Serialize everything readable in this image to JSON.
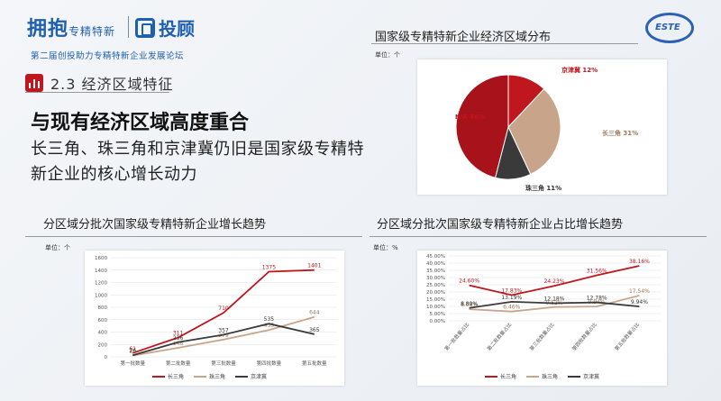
{
  "logo": {
    "script_text": "拥抱",
    "script_small": "专精特新",
    "brand_text": "投顾",
    "forum_subtitle": "第二届创投助力专精特新企业发展论坛",
    "ring_text": "ESTE"
  },
  "section": {
    "title": "2.3 经济区域特征"
  },
  "headline": "与现有经济区域高度重合",
  "body": "长三角、珠三角和京津冀仍旧是国家级专精特新企业的核心增长动力",
  "colors": {
    "red": "#c0161d",
    "tan": "#c8a58a",
    "dark": "#3a3a3a",
    "accent": "#c0161d"
  },
  "panels": {
    "pie_title": "国家级专精特新企业经济区域分布",
    "pie_unit": "单位：个",
    "bar_title": "分区域分批次国家级专精特新企业增长趋势",
    "bar_unit": "单位：个",
    "ratio_title": "分区域分批次国家级专精特新企业占比增长趋势",
    "ratio_unit": "单位：%"
  },
  "chart_data": [
    {
      "type": "pie",
      "slices": [
        {
          "label": "京津冀",
          "value": 12,
          "display": "京津冀 12%",
          "color": "#c0161d"
        },
        {
          "label": "长三角",
          "value": 31,
          "display": "长三角 31%",
          "color": "#c8a58a"
        },
        {
          "label": "珠三角",
          "value": 11,
          "display": "珠三角 11%",
          "color": "#3a3a3a"
        },
        {
          "label": "N/A",
          "value": 46,
          "display": "N/A 46%",
          "color": "#a8121a"
        }
      ]
    },
    {
      "type": "line",
      "categories": [
        "第一批数量",
        "第二批数量",
        "第三批数量",
        "第四批数量",
        "第五批数量"
      ],
      "ylim": [
        0,
        1600
      ],
      "yticks": [
        0,
        200,
        400,
        600,
        800,
        1000,
        1200,
        1400,
        1600
      ],
      "series": [
        {
          "name": "长三角",
          "color": "#c0161d",
          "values": [
            61,
            311,
            710,
            1375,
            1401
          ]
        },
        {
          "name": "珠三角",
          "color": "#c8a58a",
          "values": [
            20,
            146,
            279,
            433,
            644
          ]
        },
        {
          "name": "京津冀",
          "color": "#3a3a3a",
          "values": [
            26,
            236,
            357,
            535,
            365
          ]
        }
      ],
      "labels": [
        [
          "61",
          "311",
          "710",
          "1375",
          "1401"
        ],
        [
          "20",
          "146",
          "279",
          "433",
          "644"
        ],
        [
          "26",
          "236",
          "357",
          "535",
          "365"
        ]
      ]
    },
    {
      "type": "line",
      "categories": [
        "第一批数量占比",
        "第二批数量占比",
        "第三批数量占比",
        "第四批数量占比",
        "第五批数量占比"
      ],
      "ylim": [
        0,
        45
      ],
      "yticks": [
        "0.00%",
        "5.00%",
        "10.00%",
        "15.00%",
        "20.00%",
        "25.00%",
        "30.00%",
        "35.00%",
        "40.00%",
        "45.00%"
      ],
      "series": [
        {
          "name": "长三角",
          "color": "#c0161d",
          "values": [
            24.6,
            17.83,
            24.23,
            31.56,
            38.16
          ]
        },
        {
          "name": "珠三角",
          "color": "#c8a58a",
          "values": [
            8.06,
            6.46,
            9.52,
            9.94,
            17.54
          ]
        },
        {
          "name": "京津冀",
          "color": "#3a3a3a",
          "values": [
            8.89,
            13.19,
            12.18,
            12.78,
            9.94
          ]
        }
      ],
      "labels": [
        [
          "24.60%",
          "17.83%",
          "24.23%",
          "31.56%",
          "38.16%"
        ],
        [
          "8.06%",
          "6.46%",
          "9.52%",
          "9.94%",
          "17.54%"
        ],
        [
          "8.89%",
          "13.19%",
          "12.18%",
          "12.78%",
          "9.94%"
        ]
      ]
    }
  ]
}
